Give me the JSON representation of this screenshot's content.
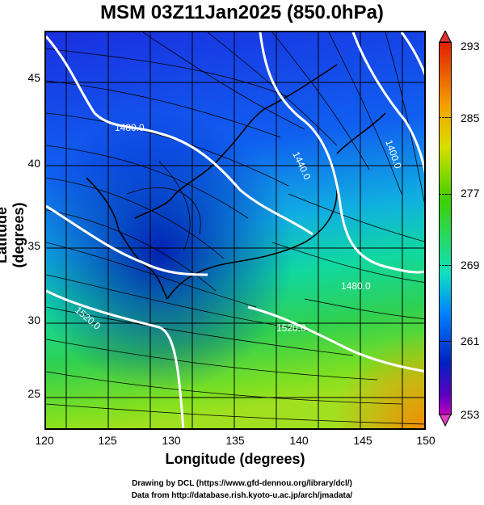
{
  "title": "MSM 03Z11Jan2025 (850.0hPa)",
  "x_axis": {
    "label": "Longitude (degrees)",
    "ticks": [
      "120",
      "125",
      "130",
      "135",
      "140",
      "145",
      "150"
    ]
  },
  "y_axis": {
    "label": "Latitude  (degrees)",
    "ticks": [
      "45",
      "40",
      "35",
      "30",
      "25"
    ]
  },
  "colorbar": {
    "ticks": [
      "293",
      "285",
      "277",
      "269",
      "261",
      "253"
    ]
  },
  "contour_labels": [
    "1480.0",
    "1440.0",
    "1400.0",
    "1480.0",
    "1520.0",
    "1520.0"
  ],
  "credits": [
    "Drawing by DCL (https://www.gfd-dennou.org/library/dcl/)",
    "Data from http://database.rish.kyoto-u.ac.jp/arch/jmadata/"
  ]
}
